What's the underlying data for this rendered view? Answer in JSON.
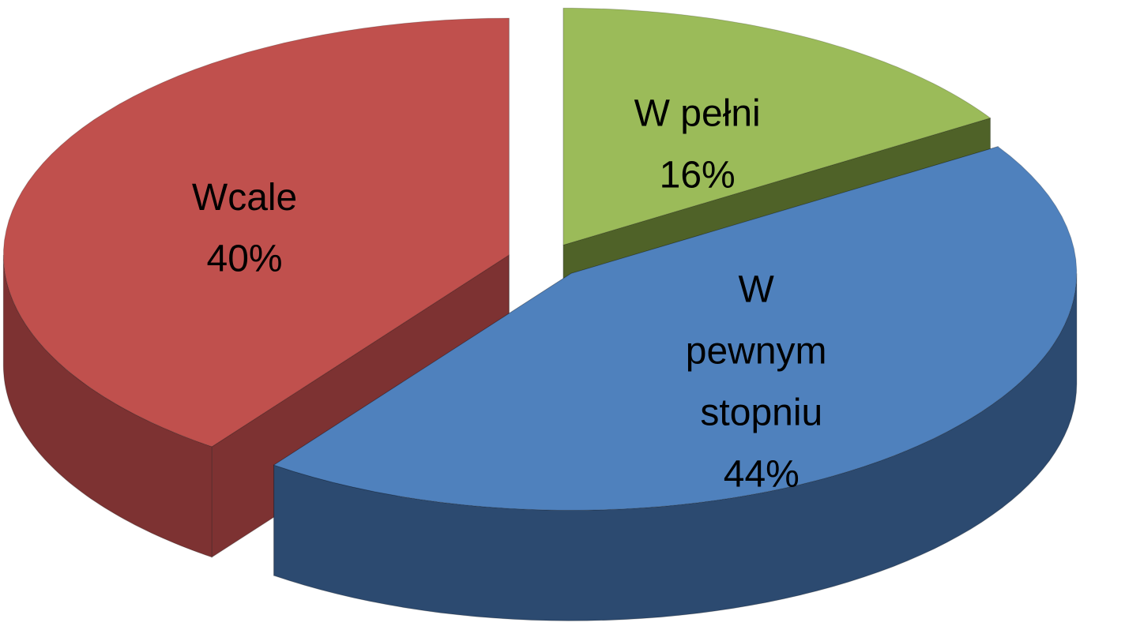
{
  "chart_data": {
    "type": "pie",
    "categories": [
      "W pełni",
      "W pewnym stopniu",
      "Wcale"
    ],
    "values": [
      16,
      44,
      40
    ],
    "value_labels": [
      "16%",
      "44%",
      "40%"
    ],
    "colors": [
      "#9bbb59",
      "#4f81bd",
      "#c0504d"
    ],
    "side_colors": [
      "#4f6228",
      "#2c4a70",
      "#7d3232"
    ]
  }
}
